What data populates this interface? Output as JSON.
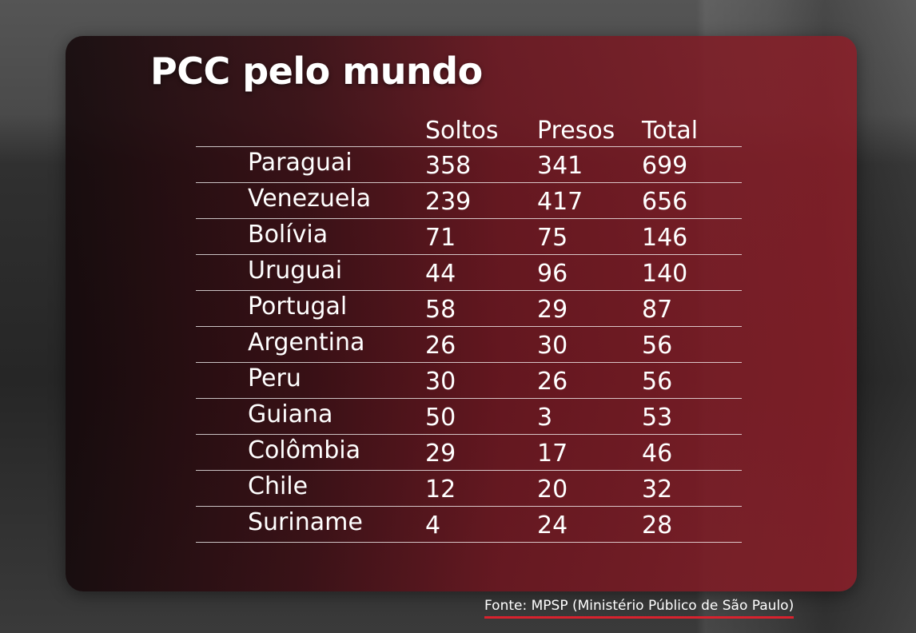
{
  "title": "PCC pelo mundo",
  "source": "Fonte: MPSP (Ministério Público de São Paulo)",
  "colors": {
    "panel_accent": "#8c1e28",
    "source_underline": "#d8222e",
    "text": "#ffffff"
  },
  "chart_data": {
    "type": "table",
    "title": "PCC pelo mundo",
    "columns": [
      "Soltos",
      "Presos",
      "Total"
    ],
    "rows": [
      {
        "country": "Paraguai",
        "soltos": "358",
        "presos": "341",
        "total": "699"
      },
      {
        "country": "Venezuela",
        "soltos": "239",
        "presos": "417",
        "total": "656"
      },
      {
        "country": "Bolívia",
        "soltos": "71",
        "presos": "75",
        "total": "146"
      },
      {
        "country": "Uruguai",
        "soltos": "44",
        "presos": "96",
        "total": "140"
      },
      {
        "country": "Portugal",
        "soltos": "58",
        "presos": "29",
        "total": "87"
      },
      {
        "country": "Argentina",
        "soltos": "26",
        "presos": "30",
        "total": "56"
      },
      {
        "country": "Peru",
        "soltos": "30",
        "presos": "26",
        "total": "56"
      },
      {
        "country": "Guiana",
        "soltos": "50",
        "presos": "3",
        "total": "53"
      },
      {
        "country": "Colômbia",
        "soltos": "29",
        "presos": "17",
        "total": "46"
      },
      {
        "country": "Chile",
        "soltos": "12",
        "presos": "20",
        "total": "32"
      },
      {
        "country": "Suriname",
        "soltos": "4",
        "presos": "24",
        "total": "28"
      }
    ]
  }
}
